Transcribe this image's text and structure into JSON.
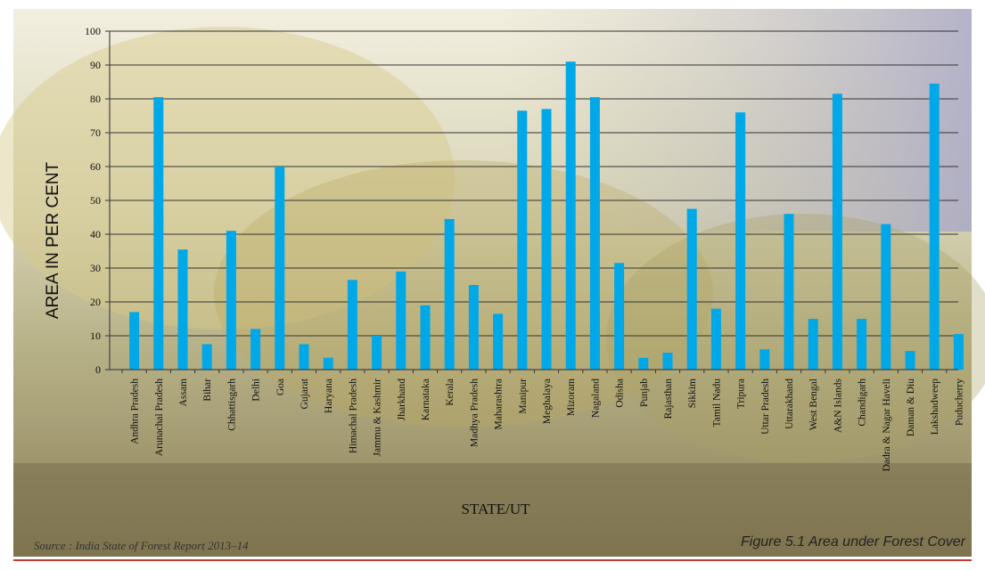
{
  "chart_data": {
    "type": "bar",
    "title": "",
    "xlabel": "STATE/UT",
    "ylabel": "AREA IN PER CENT",
    "ylim": [
      0,
      100
    ],
    "yticks": [
      0,
      10,
      20,
      30,
      40,
      50,
      60,
      70,
      80,
      90,
      100
    ],
    "grid": true,
    "legend": "none",
    "bar_color": "#00a8e8",
    "categories": [
      "Andhra Pradesh",
      "Arunachal Pradesh",
      "Assam",
      "Bihar",
      "Chhattisgarh",
      "Delhi",
      "Goa",
      "Gujarat",
      "Haryana",
      "Himachal Pradesh",
      "Jammu & Kashmir",
      "Jharkhand",
      "Karnataka",
      "Kerala",
      "Madhya Pradesh",
      "Maharashtra",
      "Manipur",
      "Meghalaya",
      "Mizoram",
      "Nagaland",
      "Odisha",
      "Punjab",
      "Rajasthan",
      "Sikkim",
      "Tamil Nadu",
      "Tripura",
      "Uttar Pradesh",
      "Uttarakhand",
      "West Bengal",
      "A&N Islands",
      "Chandigarh",
      "Dadra & Nagar Haveli",
      "Daman & Diu",
      "Lakshadweep",
      "Puducherry"
    ],
    "values": [
      17,
      80.5,
      35.5,
      7.5,
      41,
      12,
      60,
      7.5,
      3.5,
      26.5,
      10,
      29,
      19,
      44.5,
      25,
      16.5,
      76.5,
      77,
      91,
      80.5,
      31.5,
      3.5,
      5,
      47.5,
      18,
      76,
      6,
      46,
      15,
      81.5,
      15,
      43,
      5.5,
      84.5,
      10.5
    ]
  },
  "source_note": "Source : India State of Forest Report 2013–14",
  "figure_caption": "Figure 5.1 Area under Forest Cover"
}
